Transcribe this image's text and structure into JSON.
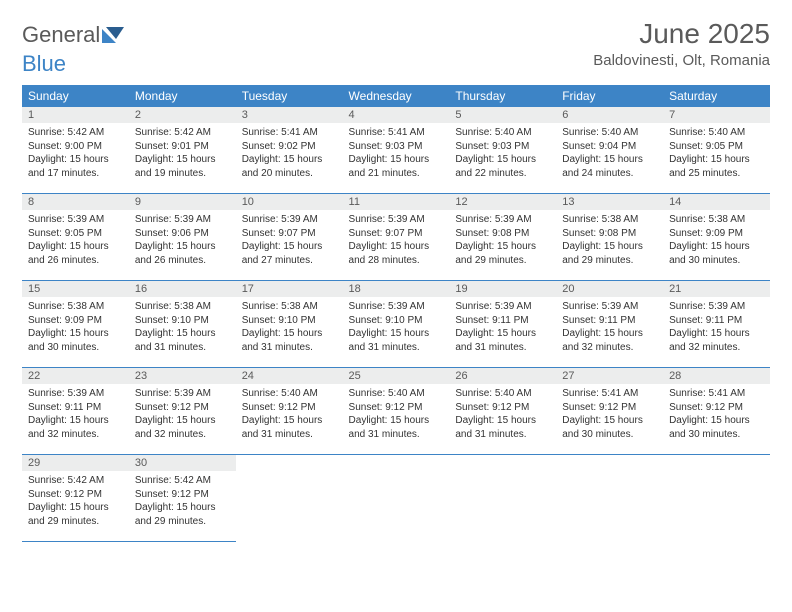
{
  "logo": {
    "word1": "General",
    "word2": "Blue"
  },
  "title": "June 2025",
  "location": "Baldovinesti, Olt, Romania",
  "colors": {
    "header_bg": "#3d84c6",
    "header_text": "#ffffff",
    "daynum_bg": "#eceded",
    "text": "#333333",
    "rule": "#3d84c6"
  },
  "dayHeaders": [
    "Sunday",
    "Monday",
    "Tuesday",
    "Wednesday",
    "Thursday",
    "Friday",
    "Saturday"
  ],
  "weeks": [
    [
      {
        "n": "1",
        "sr": "Sunrise: 5:42 AM",
        "ss": "Sunset: 9:00 PM",
        "d1": "Daylight: 15 hours",
        "d2": "and 17 minutes."
      },
      {
        "n": "2",
        "sr": "Sunrise: 5:42 AM",
        "ss": "Sunset: 9:01 PM",
        "d1": "Daylight: 15 hours",
        "d2": "and 19 minutes."
      },
      {
        "n": "3",
        "sr": "Sunrise: 5:41 AM",
        "ss": "Sunset: 9:02 PM",
        "d1": "Daylight: 15 hours",
        "d2": "and 20 minutes."
      },
      {
        "n": "4",
        "sr": "Sunrise: 5:41 AM",
        "ss": "Sunset: 9:03 PM",
        "d1": "Daylight: 15 hours",
        "d2": "and 21 minutes."
      },
      {
        "n": "5",
        "sr": "Sunrise: 5:40 AM",
        "ss": "Sunset: 9:03 PM",
        "d1": "Daylight: 15 hours",
        "d2": "and 22 minutes."
      },
      {
        "n": "6",
        "sr": "Sunrise: 5:40 AM",
        "ss": "Sunset: 9:04 PM",
        "d1": "Daylight: 15 hours",
        "d2": "and 24 minutes."
      },
      {
        "n": "7",
        "sr": "Sunrise: 5:40 AM",
        "ss": "Sunset: 9:05 PM",
        "d1": "Daylight: 15 hours",
        "d2": "and 25 minutes."
      }
    ],
    [
      {
        "n": "8",
        "sr": "Sunrise: 5:39 AM",
        "ss": "Sunset: 9:05 PM",
        "d1": "Daylight: 15 hours",
        "d2": "and 26 minutes."
      },
      {
        "n": "9",
        "sr": "Sunrise: 5:39 AM",
        "ss": "Sunset: 9:06 PM",
        "d1": "Daylight: 15 hours",
        "d2": "and 26 minutes."
      },
      {
        "n": "10",
        "sr": "Sunrise: 5:39 AM",
        "ss": "Sunset: 9:07 PM",
        "d1": "Daylight: 15 hours",
        "d2": "and 27 minutes."
      },
      {
        "n": "11",
        "sr": "Sunrise: 5:39 AM",
        "ss": "Sunset: 9:07 PM",
        "d1": "Daylight: 15 hours",
        "d2": "and 28 minutes."
      },
      {
        "n": "12",
        "sr": "Sunrise: 5:39 AM",
        "ss": "Sunset: 9:08 PM",
        "d1": "Daylight: 15 hours",
        "d2": "and 29 minutes."
      },
      {
        "n": "13",
        "sr": "Sunrise: 5:38 AM",
        "ss": "Sunset: 9:08 PM",
        "d1": "Daylight: 15 hours",
        "d2": "and 29 minutes."
      },
      {
        "n": "14",
        "sr": "Sunrise: 5:38 AM",
        "ss": "Sunset: 9:09 PM",
        "d1": "Daylight: 15 hours",
        "d2": "and 30 minutes."
      }
    ],
    [
      {
        "n": "15",
        "sr": "Sunrise: 5:38 AM",
        "ss": "Sunset: 9:09 PM",
        "d1": "Daylight: 15 hours",
        "d2": "and 30 minutes."
      },
      {
        "n": "16",
        "sr": "Sunrise: 5:38 AM",
        "ss": "Sunset: 9:10 PM",
        "d1": "Daylight: 15 hours",
        "d2": "and 31 minutes."
      },
      {
        "n": "17",
        "sr": "Sunrise: 5:38 AM",
        "ss": "Sunset: 9:10 PM",
        "d1": "Daylight: 15 hours",
        "d2": "and 31 minutes."
      },
      {
        "n": "18",
        "sr": "Sunrise: 5:39 AM",
        "ss": "Sunset: 9:10 PM",
        "d1": "Daylight: 15 hours",
        "d2": "and 31 minutes."
      },
      {
        "n": "19",
        "sr": "Sunrise: 5:39 AM",
        "ss": "Sunset: 9:11 PM",
        "d1": "Daylight: 15 hours",
        "d2": "and 31 minutes."
      },
      {
        "n": "20",
        "sr": "Sunrise: 5:39 AM",
        "ss": "Sunset: 9:11 PM",
        "d1": "Daylight: 15 hours",
        "d2": "and 32 minutes."
      },
      {
        "n": "21",
        "sr": "Sunrise: 5:39 AM",
        "ss": "Sunset: 9:11 PM",
        "d1": "Daylight: 15 hours",
        "d2": "and 32 minutes."
      }
    ],
    [
      {
        "n": "22",
        "sr": "Sunrise: 5:39 AM",
        "ss": "Sunset: 9:11 PM",
        "d1": "Daylight: 15 hours",
        "d2": "and 32 minutes."
      },
      {
        "n": "23",
        "sr": "Sunrise: 5:39 AM",
        "ss": "Sunset: 9:12 PM",
        "d1": "Daylight: 15 hours",
        "d2": "and 32 minutes."
      },
      {
        "n": "24",
        "sr": "Sunrise: 5:40 AM",
        "ss": "Sunset: 9:12 PM",
        "d1": "Daylight: 15 hours",
        "d2": "and 31 minutes."
      },
      {
        "n": "25",
        "sr": "Sunrise: 5:40 AM",
        "ss": "Sunset: 9:12 PM",
        "d1": "Daylight: 15 hours",
        "d2": "and 31 minutes."
      },
      {
        "n": "26",
        "sr": "Sunrise: 5:40 AM",
        "ss": "Sunset: 9:12 PM",
        "d1": "Daylight: 15 hours",
        "d2": "and 31 minutes."
      },
      {
        "n": "27",
        "sr": "Sunrise: 5:41 AM",
        "ss": "Sunset: 9:12 PM",
        "d1": "Daylight: 15 hours",
        "d2": "and 30 minutes."
      },
      {
        "n": "28",
        "sr": "Sunrise: 5:41 AM",
        "ss": "Sunset: 9:12 PM",
        "d1": "Daylight: 15 hours",
        "d2": "and 30 minutes."
      }
    ],
    [
      {
        "n": "29",
        "sr": "Sunrise: 5:42 AM",
        "ss": "Sunset: 9:12 PM",
        "d1": "Daylight: 15 hours",
        "d2": "and 29 minutes."
      },
      {
        "n": "30",
        "sr": "Sunrise: 5:42 AM",
        "ss": "Sunset: 9:12 PM",
        "d1": "Daylight: 15 hours",
        "d2": "and 29 minutes."
      },
      null,
      null,
      null,
      null,
      null
    ]
  ]
}
